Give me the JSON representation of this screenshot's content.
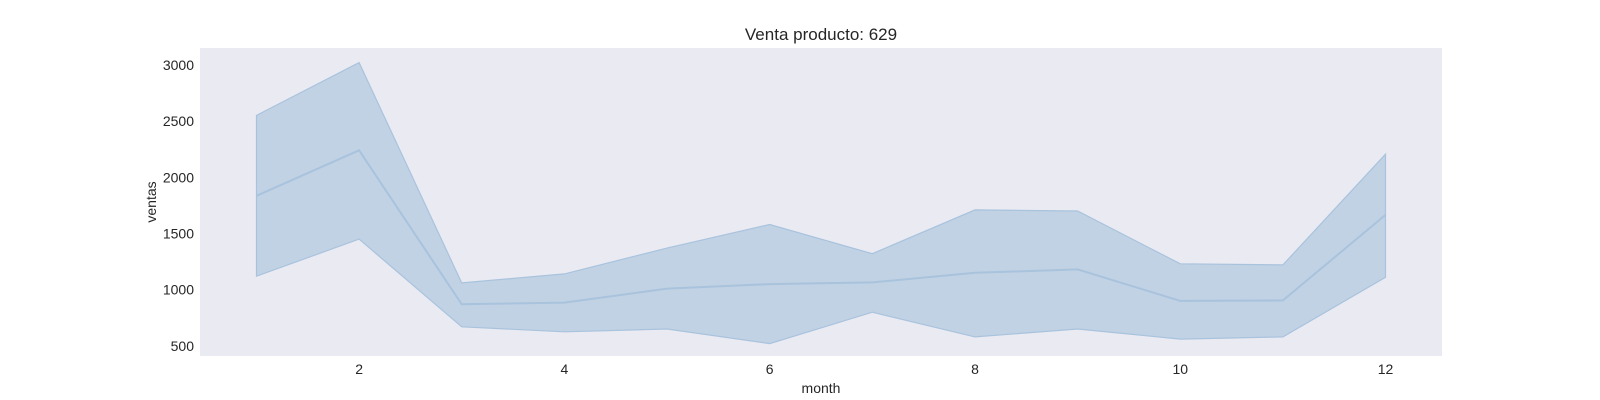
{
  "chart_data": {
    "type": "line",
    "title": "Venta producto: 629",
    "xlabel": "month",
    "ylabel": "ventas",
    "xlim": [
      0.45,
      12.55
    ],
    "ylim": [
      410,
      3150
    ],
    "xticks": [
      2,
      4,
      6,
      8,
      10,
      12
    ],
    "yticks": [
      500,
      1000,
      1500,
      2000,
      2500,
      3000
    ],
    "grid": false,
    "x": [
      1,
      2,
      3,
      4,
      5,
      6,
      7,
      8,
      9,
      10,
      11,
      12
    ],
    "series": [
      {
        "values": [
          1835,
          2240,
          870,
          885,
          1010,
          1050,
          1065,
          1150,
          1180,
          900,
          905,
          1665
        ],
        "ci_upper": [
          2550,
          3020,
          1060,
          1140,
          1370,
          1580,
          1320,
          1710,
          1700,
          1230,
          1220,
          2205
        ],
        "ci_lower": [
          1120,
          1450,
          670,
          625,
          650,
          520,
          800,
          580,
          650,
          560,
          580,
          1110
        ]
      }
    ],
    "colors": {
      "plot_background": "#eaeaf2",
      "line": "#a9c3dd",
      "band": "#c1d2e4",
      "band_edge": "#a9c3dd"
    }
  }
}
